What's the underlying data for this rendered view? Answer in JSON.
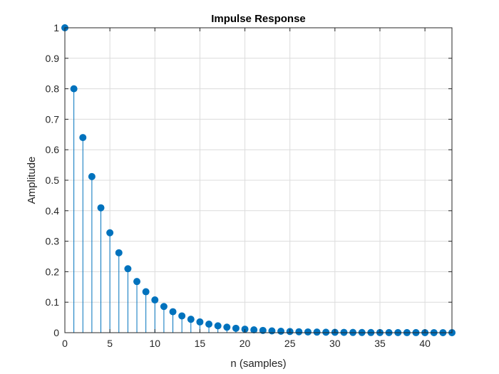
{
  "chart_data": {
    "type": "stem",
    "title": "Impulse Response",
    "xlabel": "n (samples)",
    "ylabel": "Amplitude",
    "xlim": [
      0,
      43
    ],
    "ylim": [
      0,
      1
    ],
    "x_ticks": [
      0,
      5,
      10,
      15,
      20,
      25,
      30,
      35,
      40
    ],
    "y_ticks": [
      0,
      0.1,
      0.2,
      0.3,
      0.4,
      0.5,
      0.6,
      0.7,
      0.8,
      0.9,
      1
    ],
    "grid": true,
    "series": [
      {
        "color": "#0072BD",
        "x": [
          0,
          1,
          2,
          3,
          4,
          5,
          6,
          7,
          8,
          9,
          10,
          11,
          12,
          13,
          14,
          15,
          16,
          17,
          18,
          19,
          20,
          21,
          22,
          23,
          24,
          25,
          26,
          27,
          28,
          29,
          30,
          31,
          32,
          33,
          34,
          35,
          36,
          37,
          38,
          39,
          40,
          41,
          42,
          43
        ],
        "y": [
          1,
          0.8,
          0.64,
          0.512,
          0.4096,
          0.3277,
          0.2621,
          0.2097,
          0.1678,
          0.1342,
          0.1074,
          0.0859,
          0.0687,
          0.055,
          0.044,
          0.0352,
          0.0281,
          0.0225,
          0.018,
          0.0144,
          0.0115,
          0.0092,
          0.0074,
          0.0059,
          0.0047,
          0.0038,
          0.003,
          0.0024,
          0.0019,
          0.0015,
          0.0012,
          0.001,
          0.0008,
          0.0006,
          0.0005,
          0.0004,
          0.0003,
          0.0003,
          0.0002,
          0.0002,
          0.0001,
          0.0001,
          0.0001,
          0.0001
        ]
      }
    ]
  }
}
